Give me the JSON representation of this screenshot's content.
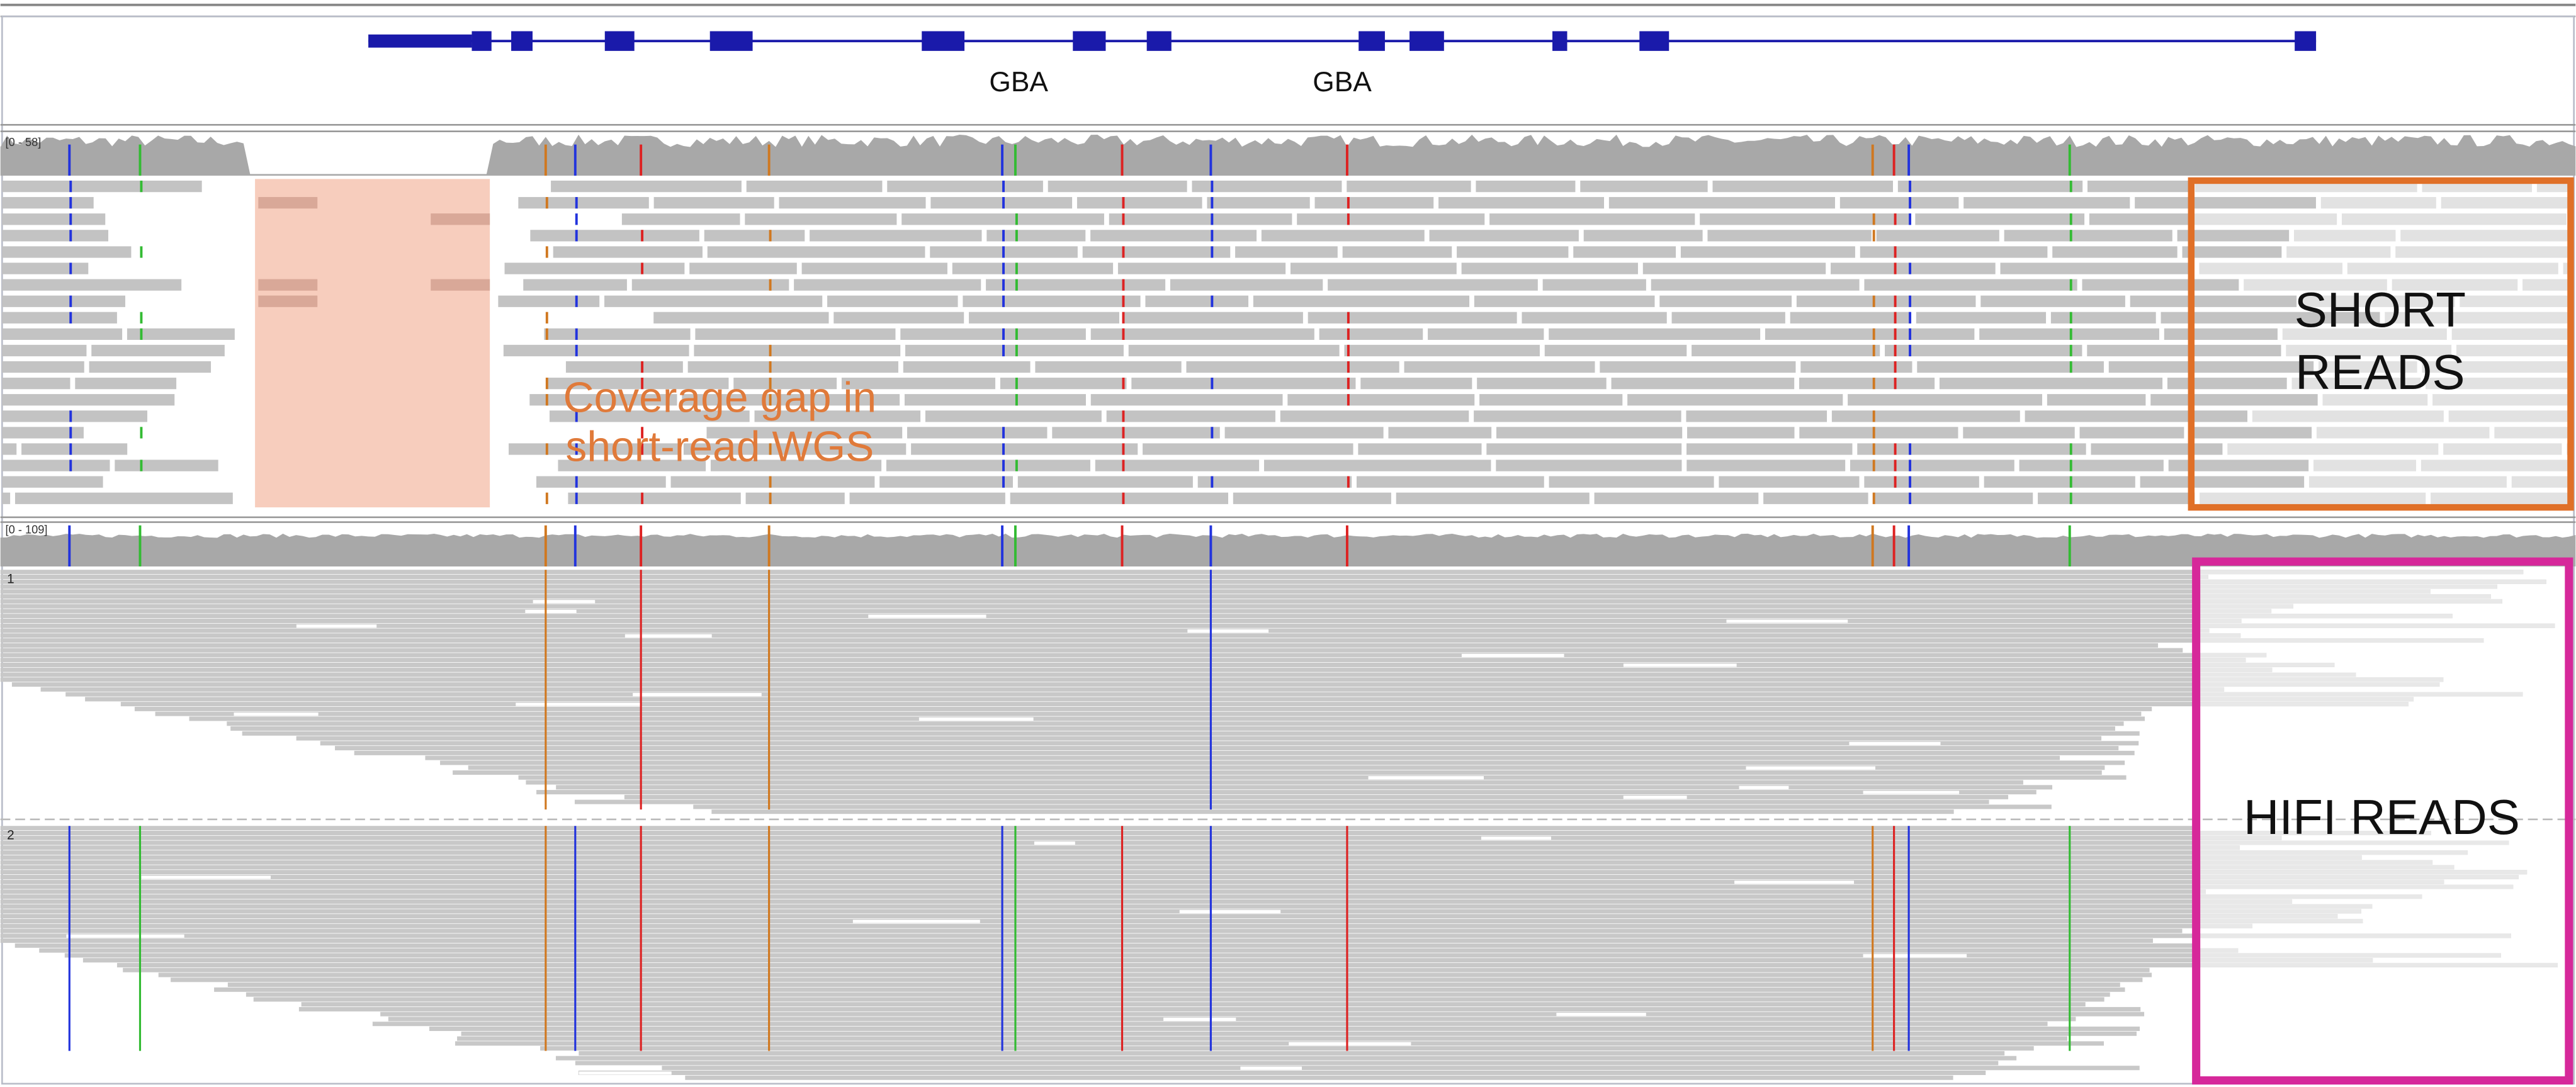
{
  "gene_track": {
    "labels": [
      "GBA",
      "GBA"
    ]
  },
  "tracks": {
    "short_coverage_range": "[0 - 58]",
    "hifi_coverage_range": "[0 - 109]",
    "hifi_groups": [
      "1",
      "2"
    ]
  },
  "annotations": {
    "coverage_gap": [
      "Coverage gap in",
      "short-read WGS"
    ],
    "short_reads": [
      "SHORT",
      "READS"
    ],
    "hifi_reads": "HIFI READS"
  }
}
